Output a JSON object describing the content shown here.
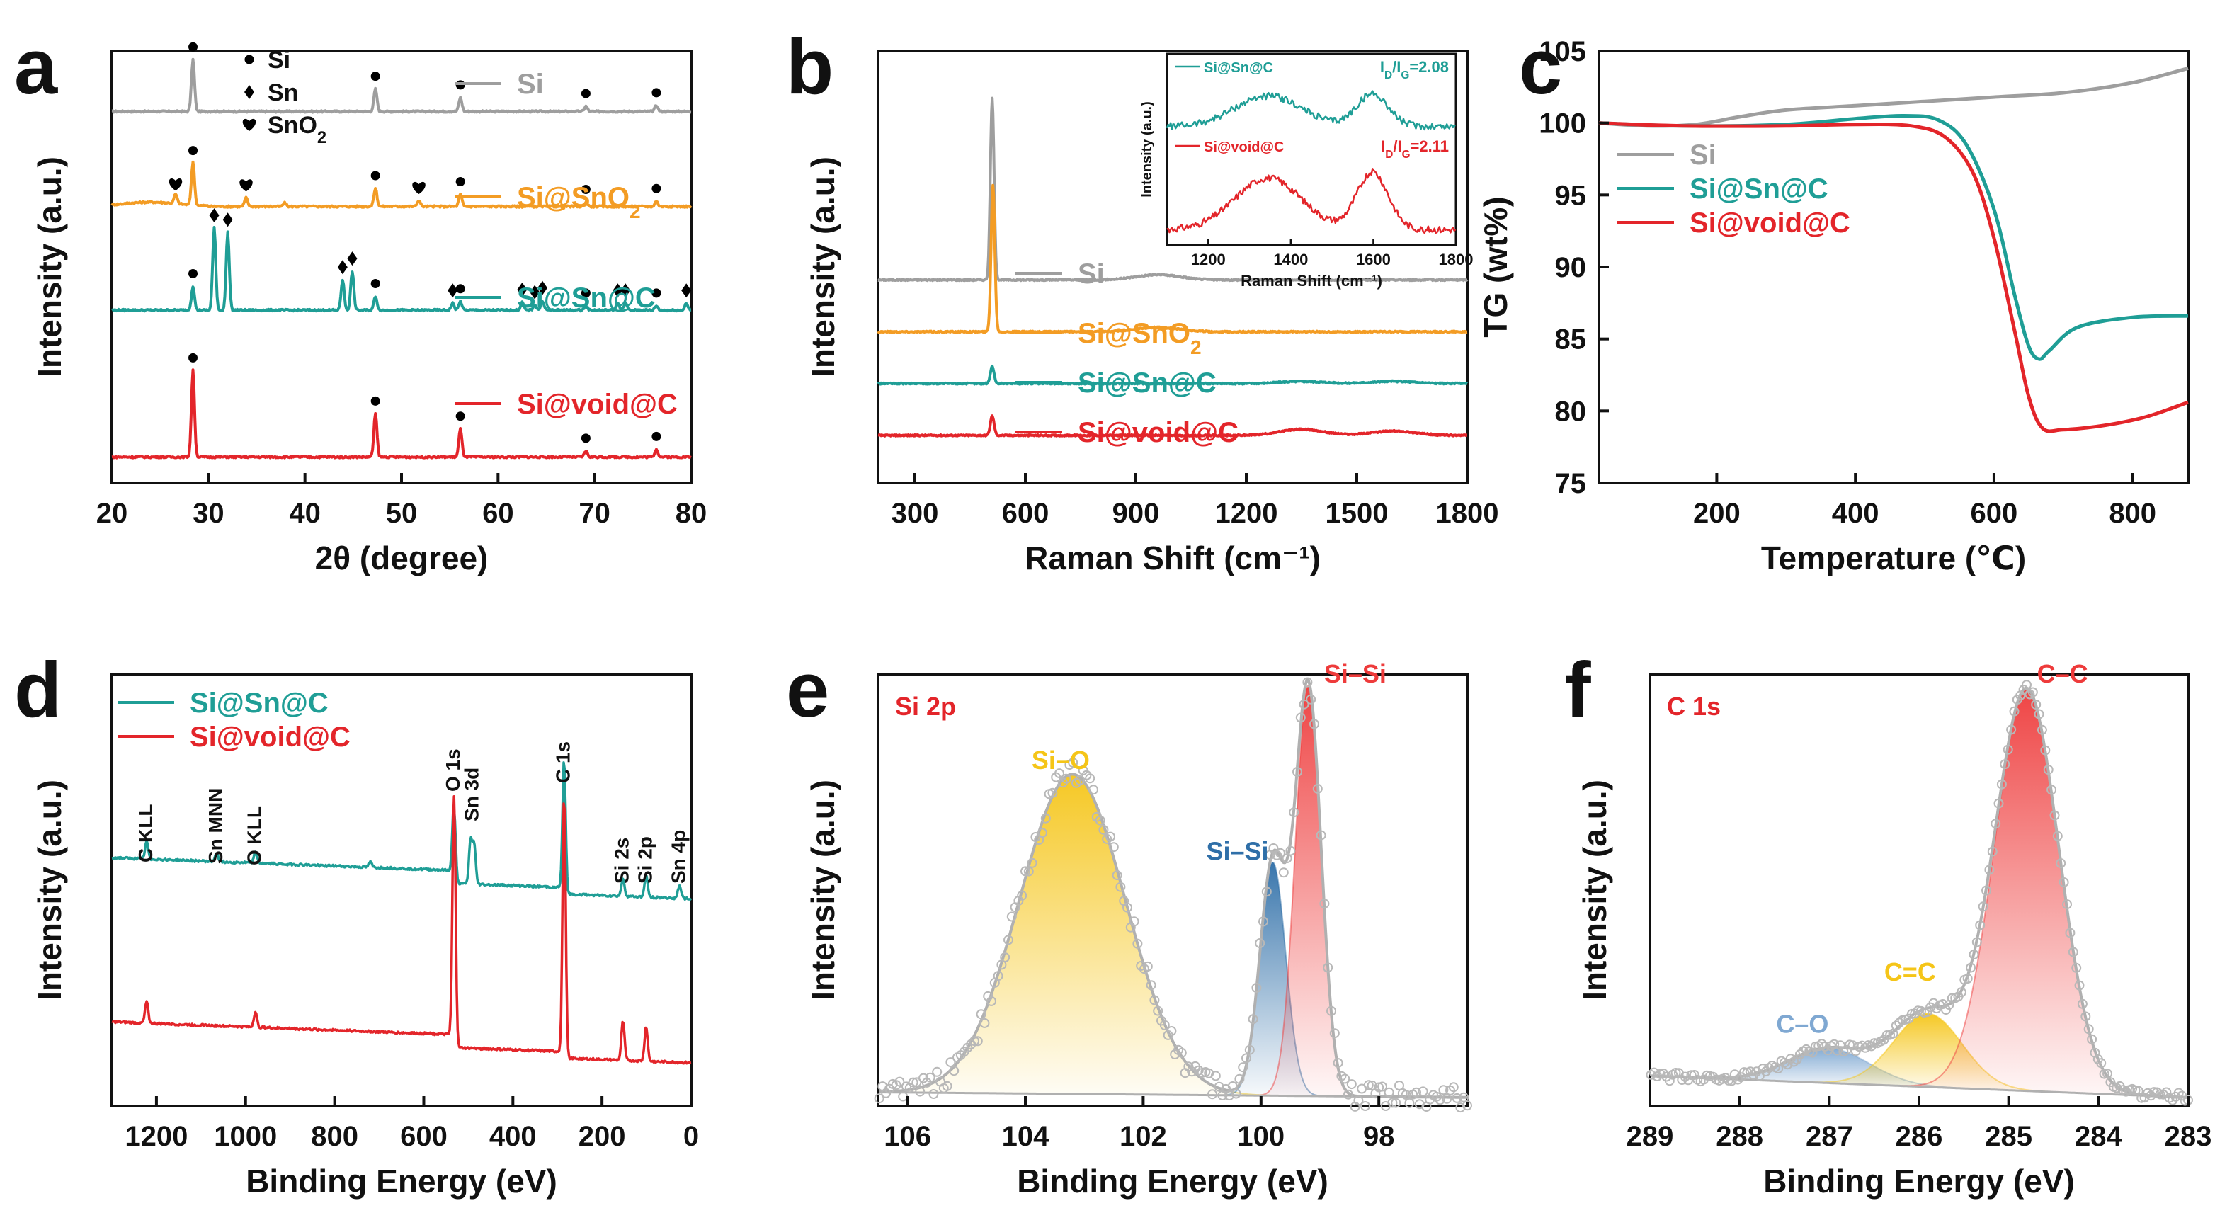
{
  "colors": {
    "si": "#9e9e9e",
    "si_sno2": "#f39c24",
    "si_sn_c": "#1f9e96",
    "si_void_c": "#e3252a",
    "axis": "#111111",
    "fit": "#b0b0b0",
    "peak_yellow": "#f5c518",
    "peak_red": "#ee3b3b",
    "peak_blue": "#2f6fa8",
    "peak_lightblue": "#7fa8d2"
  },
  "markers": {
    "si": "circle",
    "sn": "diamond",
    "sno2": "heart"
  },
  "chart_data": [
    {
      "panel": "a",
      "type": "line",
      "xlabel": "2θ (degree)",
      "ylabel": "Intensity (a.u.)",
      "xlim": [
        20,
        80
      ],
      "xticks": [
        20,
        30,
        40,
        50,
        60,
        70,
        80
      ],
      "marker_legend": [
        {
          "symbol": "circle",
          "label": "Si"
        },
        {
          "symbol": "diamond",
          "label": "Sn"
        },
        {
          "symbol": "heart",
          "label": "SnO2"
        }
      ],
      "series": [
        {
          "name": "Si",
          "color": "#9e9e9e",
          "baseline": 0.86,
          "peaks": [
            [
              28.4,
              0.12
            ],
            [
              47.3,
              0.052
            ],
            [
              56.1,
              0.032
            ],
            [
              69.1,
              0.012
            ],
            [
              76.4,
              0.014
            ]
          ],
          "markers": [
            [
              28.4,
              "circle"
            ],
            [
              47.3,
              "circle"
            ],
            [
              56.1,
              "circle"
            ],
            [
              69.1,
              "circle"
            ],
            [
              76.4,
              "circle"
            ]
          ]
        },
        {
          "name": "Si@SnO2",
          "color": "#f39c24",
          "baseline": 0.64,
          "peaks": [
            [
              26.6,
              0.022
            ],
            [
              28.4,
              0.1
            ],
            [
              33.9,
              0.02
            ],
            [
              37.9,
              0.008
            ],
            [
              47.3,
              0.042
            ],
            [
              51.8,
              0.014
            ],
            [
              56.1,
              0.028
            ],
            [
              69.1,
              0.01
            ],
            [
              76.4,
              0.012
            ]
          ],
          "markers": [
            [
              26.6,
              "heart"
            ],
            [
              28.4,
              "circle"
            ],
            [
              33.9,
              "heart"
            ],
            [
              47.3,
              "circle"
            ],
            [
              51.8,
              "heart"
            ],
            [
              56.1,
              "circle"
            ],
            [
              69.1,
              "circle"
            ],
            [
              76.4,
              "circle"
            ]
          ]
        },
        {
          "name": "Si@Sn@C",
          "color": "#1f9e96",
          "baseline": 0.4,
          "peaks": [
            [
              28.4,
              0.055
            ],
            [
              30.6,
              0.19
            ],
            [
              32.0,
              0.18
            ],
            [
              43.9,
              0.07
            ],
            [
              44.9,
              0.09
            ],
            [
              47.3,
              0.032
            ],
            [
              55.3,
              0.016
            ],
            [
              56.1,
              0.02
            ],
            [
              62.5,
              0.018
            ],
            [
              63.8,
              0.012
            ],
            [
              64.6,
              0.022
            ],
            [
              69.1,
              0.01
            ],
            [
              72.4,
              0.016
            ],
            [
              73.2,
              0.016
            ],
            [
              76.4,
              0.01
            ],
            [
              79.5,
              0.016
            ]
          ],
          "markers": [
            [
              28.4,
              "circle"
            ],
            [
              30.6,
              "diamond"
            ],
            [
              32.0,
              "diamond"
            ],
            [
              43.9,
              "diamond"
            ],
            [
              44.9,
              "diamond"
            ],
            [
              47.3,
              "circle"
            ],
            [
              55.3,
              "diamond"
            ],
            [
              56.1,
              "circle"
            ],
            [
              62.5,
              "diamond"
            ],
            [
              63.8,
              "diamond"
            ],
            [
              64.6,
              "diamond"
            ],
            [
              69.1,
              "circle"
            ],
            [
              72.4,
              "diamond"
            ],
            [
              73.2,
              "diamond"
            ],
            [
              76.4,
              "circle"
            ],
            [
              79.5,
              "diamond"
            ]
          ]
        },
        {
          "name": "Si@void@C",
          "color": "#e3252a",
          "baseline": 0.06,
          "peaks": [
            [
              28.4,
              0.2
            ],
            [
              47.3,
              0.1
            ],
            [
              56.1,
              0.065
            ],
            [
              69.1,
              0.014
            ],
            [
              76.4,
              0.018
            ]
          ],
          "markers": [
            [
              28.4,
              "circle"
            ],
            [
              47.3,
              "circle"
            ],
            [
              56.1,
              "circle"
            ],
            [
              69.1,
              "circle"
            ],
            [
              76.4,
              "circle"
            ]
          ]
        }
      ]
    },
    {
      "panel": "b",
      "type": "line",
      "xlabel": "Raman Shift (cm⁻¹)",
      "ylabel": "Intensity (a.u.)",
      "xlim": [
        200,
        1800
      ],
      "xticks": [
        300,
        600,
        900,
        1200,
        1500,
        1800
      ],
      "series": [
        {
          "name": "Si",
          "color": "#9e9e9e",
          "baseline": 0.47,
          "peaks": [
            [
              510,
              0.42
            ],
            [
              960,
              0.012
            ]
          ]
        },
        {
          "name": "Si@SnO2",
          "color": "#f39c24",
          "baseline": 0.35,
          "peaks": [
            [
              512,
              0.34
            ],
            [
              960,
              0.01
            ]
          ]
        },
        {
          "name": "Si@Sn@C",
          "color": "#1f9e96",
          "baseline": 0.23,
          "peaks": [
            [
              510,
              0.04
            ],
            [
              1350,
              0.005
            ],
            [
              1600,
              0.005
            ]
          ]
        },
        {
          "name": "Si@void@C",
          "color": "#e3252a",
          "baseline": 0.11,
          "peaks": [
            [
              510,
              0.045
            ],
            [
              1350,
              0.014
            ],
            [
              1600,
              0.01
            ]
          ]
        }
      ],
      "inset": {
        "xlabel": "Raman Shift (cm⁻¹)",
        "ylabel": "Intensity (a.u.)",
        "xlim": [
          1100,
          1800
        ],
        "xticks": [
          1200,
          1400,
          1600,
          1800
        ],
        "series": [
          {
            "name": "Si@Sn@C",
            "ratio_label": "ID/IG=2.08",
            "ratio_value": 2.08,
            "color": "#1f9e96"
          },
          {
            "name": "Si@void@C",
            "ratio_label": "ID/IG=2.11",
            "ratio_value": 2.11,
            "color": "#e3252a"
          }
        ]
      }
    },
    {
      "panel": "c",
      "type": "line",
      "xlabel": "Temperature (℃)",
      "ylabel": "TG (wt%)",
      "xlim": [
        30,
        880
      ],
      "ylim": [
        75,
        105
      ],
      "xticks": [
        200,
        400,
        600,
        800
      ],
      "yticks": [
        75,
        80,
        85,
        90,
        95,
        100,
        105
      ],
      "series": [
        {
          "name": "Si",
          "color": "#9e9e9e",
          "x": [
            30,
            100,
            170,
            230,
            300,
            400,
            500,
            600,
            700,
            800,
            880
          ],
          "y": [
            100.0,
            99.8,
            99.9,
            100.4,
            100.9,
            101.2,
            101.5,
            101.8,
            102.1,
            102.8,
            103.8
          ]
        },
        {
          "name": "Si@Sn@C",
          "color": "#1f9e96",
          "x": [
            30,
            150,
            300,
            400,
            470,
            520,
            560,
            600,
            630,
            650,
            665,
            680,
            720,
            800,
            880
          ],
          "y": [
            100.0,
            99.8,
            99.9,
            100.3,
            100.5,
            100.2,
            98.5,
            94.0,
            88.0,
            84.5,
            83.6,
            84.2,
            85.8,
            86.5,
            86.6
          ]
        },
        {
          "name": "Si@void@C",
          "color": "#e3252a",
          "x": [
            30,
            150,
            300,
            400,
            480,
            530,
            570,
            600,
            630,
            650,
            670,
            700,
            760,
            820,
            880
          ],
          "y": [
            100.0,
            99.8,
            99.8,
            99.9,
            99.8,
            99.0,
            96.5,
            92.0,
            85.5,
            81.0,
            78.8,
            78.7,
            79.0,
            79.6,
            80.6
          ]
        }
      ]
    },
    {
      "panel": "d",
      "type": "line",
      "xlabel": "Binding Energy (eV)",
      "ylabel": "Intensity (a.u.)",
      "xlim": [
        1300,
        0
      ],
      "xticks": [
        1200,
        1000,
        800,
        600,
        400,
        200,
        0
      ],
      "annotations": [
        {
          "label": "C KLL",
          "x": 1222
        },
        {
          "label": "Sn MNN",
          "x": 1065
        },
        {
          "label": "O KLL",
          "x": 978
        },
        {
          "label": "O 1s",
          "x": 532
        },
        {
          "label": "Sn 3d",
          "x": 490
        },
        {
          "label": "C 1s",
          "x": 285
        },
        {
          "label": "Si 2s",
          "x": 153
        },
        {
          "label": "Si 2p",
          "x": 101
        },
        {
          "label": "Sn 4p",
          "x": 26
        }
      ],
      "series": [
        {
          "name": "Si@Sn@C",
          "color": "#1f9e96",
          "baseline": 0.48,
          "peaks": [
            [
              1222,
              0.04
            ],
            [
              1065,
              0.02
            ],
            [
              978,
              0.025
            ],
            [
              720,
              0.012
            ],
            [
              532,
              0.17
            ],
            [
              495,
              0.1
            ],
            [
              487,
              0.09
            ],
            [
              285,
              0.3
            ],
            [
              153,
              0.04
            ],
            [
              101,
              0.05
            ],
            [
              26,
              0.03
            ]
          ]
        },
        {
          "name": "Si@void@C",
          "color": "#e3252a",
          "baseline": 0.1,
          "peaks": [
            [
              1222,
              0.05
            ],
            [
              978,
              0.035
            ],
            [
              532,
              0.58
            ],
            [
              285,
              0.6
            ],
            [
              153,
              0.09
            ],
            [
              101,
              0.08
            ]
          ]
        }
      ]
    },
    {
      "panel": "e",
      "type": "scatter",
      "title": "Si 2p",
      "xlabel": "Binding Energy (eV)",
      "ylabel": "Intensity (a.u.)",
      "xlim": [
        106.5,
        96.5
      ],
      "xticks": [
        106,
        104,
        102,
        100,
        98
      ],
      "components": [
        {
          "name": "Si–O",
          "center": 103.2,
          "height": 0.74,
          "width": 0.9,
          "color": "#f5c518"
        },
        {
          "name": "Si–Si",
          "center": 99.8,
          "height": 0.54,
          "width": 0.22,
          "color": "#2f6fa8"
        },
        {
          "name": "Si–Si",
          "center": 99.2,
          "height": 0.95,
          "width": 0.22,
          "color": "#ee3b3b"
        }
      ]
    },
    {
      "panel": "f",
      "type": "scatter",
      "title": "C 1s",
      "xlabel": "Binding Energy (eV)",
      "ylabel": "Intensity (a.u.)",
      "xlim": [
        289,
        283
      ],
      "xticks": [
        289,
        288,
        287,
        286,
        285,
        284,
        283
      ],
      "components": [
        {
          "name": "C–O",
          "center": 287.0,
          "height": 0.08,
          "width": 0.45,
          "color": "#7fa8d2"
        },
        {
          "name": "C=C",
          "center": 285.9,
          "height": 0.17,
          "width": 0.38,
          "color": "#f5c518"
        },
        {
          "name": "C–C",
          "center": 284.8,
          "height": 0.93,
          "width": 0.36,
          "color": "#ee3b3b"
        }
      ]
    }
  ],
  "panel_letters": [
    "a",
    "b",
    "c",
    "d",
    "e",
    "f"
  ]
}
